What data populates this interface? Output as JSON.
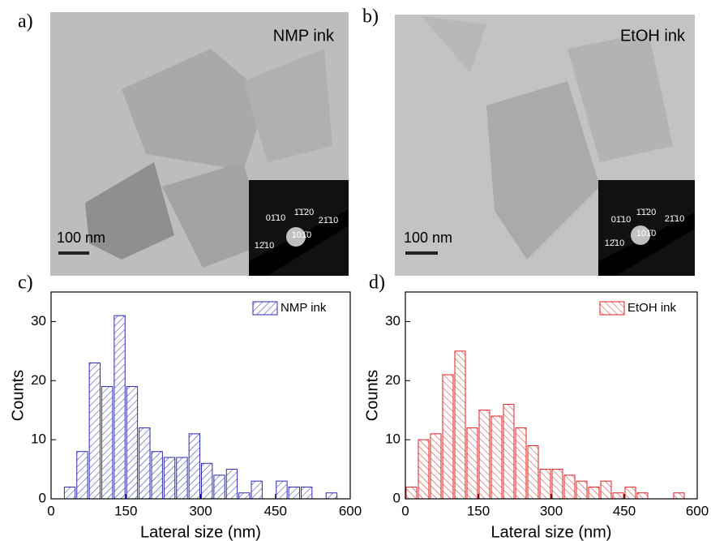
{
  "images": [
    {
      "label": "a)",
      "caption": "NMP ink",
      "scale_bar": "100 nm",
      "indices": [
        "1̄1̄20",
        "01̄10",
        "21̄10",
        "101̄0",
        "12̄10"
      ]
    },
    {
      "label": "b)",
      "caption": "EtOH ink",
      "scale_bar": "100 nm",
      "indices": [
        "1̄1̄20",
        "01̄10",
        "21̄10",
        "101̄0",
        "12̄10"
      ]
    }
  ],
  "chart_data": [
    {
      "type": "histogram",
      "panel_label": "c)",
      "x_label": "Lateral size (nm)",
      "y_label": "Counts",
      "bins": [
        25,
        50,
        75,
        100,
        125,
        150,
        175,
        200,
        225,
        250,
        275,
        300,
        325,
        350,
        375,
        400,
        425,
        450,
        475,
        500,
        525,
        550,
        575
      ],
      "series": [
        {
          "name": "NMP ink",
          "color": "#2b2bb0",
          "values": [
            2,
            8,
            23,
            19,
            31,
            19,
            12,
            8,
            7,
            7,
            11,
            6,
            4,
            5,
            1,
            3,
            0,
            3,
            2,
            2,
            0,
            1
          ]
        }
      ],
      "xlim": [
        0,
        600
      ],
      "xticks": [
        0,
        150,
        300,
        450,
        600
      ],
      "ylim": [
        0,
        35
      ],
      "yticks": [
        0,
        10,
        20,
        30
      ],
      "legend": "upper right"
    },
    {
      "type": "histogram",
      "panel_label": "d)",
      "x_label": "Lateral size (nm)",
      "y_label": "Counts",
      "bins": [
        0,
        25,
        50,
        75,
        100,
        125,
        150,
        175,
        200,
        225,
        250,
        275,
        300,
        325,
        350,
        375,
        400,
        425,
        450,
        475,
        500,
        525,
        550,
        575
      ],
      "series": [
        {
          "name": "EtOH ink",
          "color": "#dd2222",
          "values": [
            2,
            10,
            11,
            21,
            25,
            12,
            15,
            14,
            16,
            12,
            9,
            5,
            5,
            4,
            3,
            2,
            3,
            1,
            2,
            1,
            0,
            0,
            1
          ]
        }
      ],
      "xlim": [
        0,
        600
      ],
      "xticks": [
        0,
        150,
        300,
        450,
        600
      ],
      "ylim": [
        0,
        35
      ],
      "yticks": [
        0,
        10,
        20,
        30
      ],
      "legend": "upper right"
    }
  ]
}
